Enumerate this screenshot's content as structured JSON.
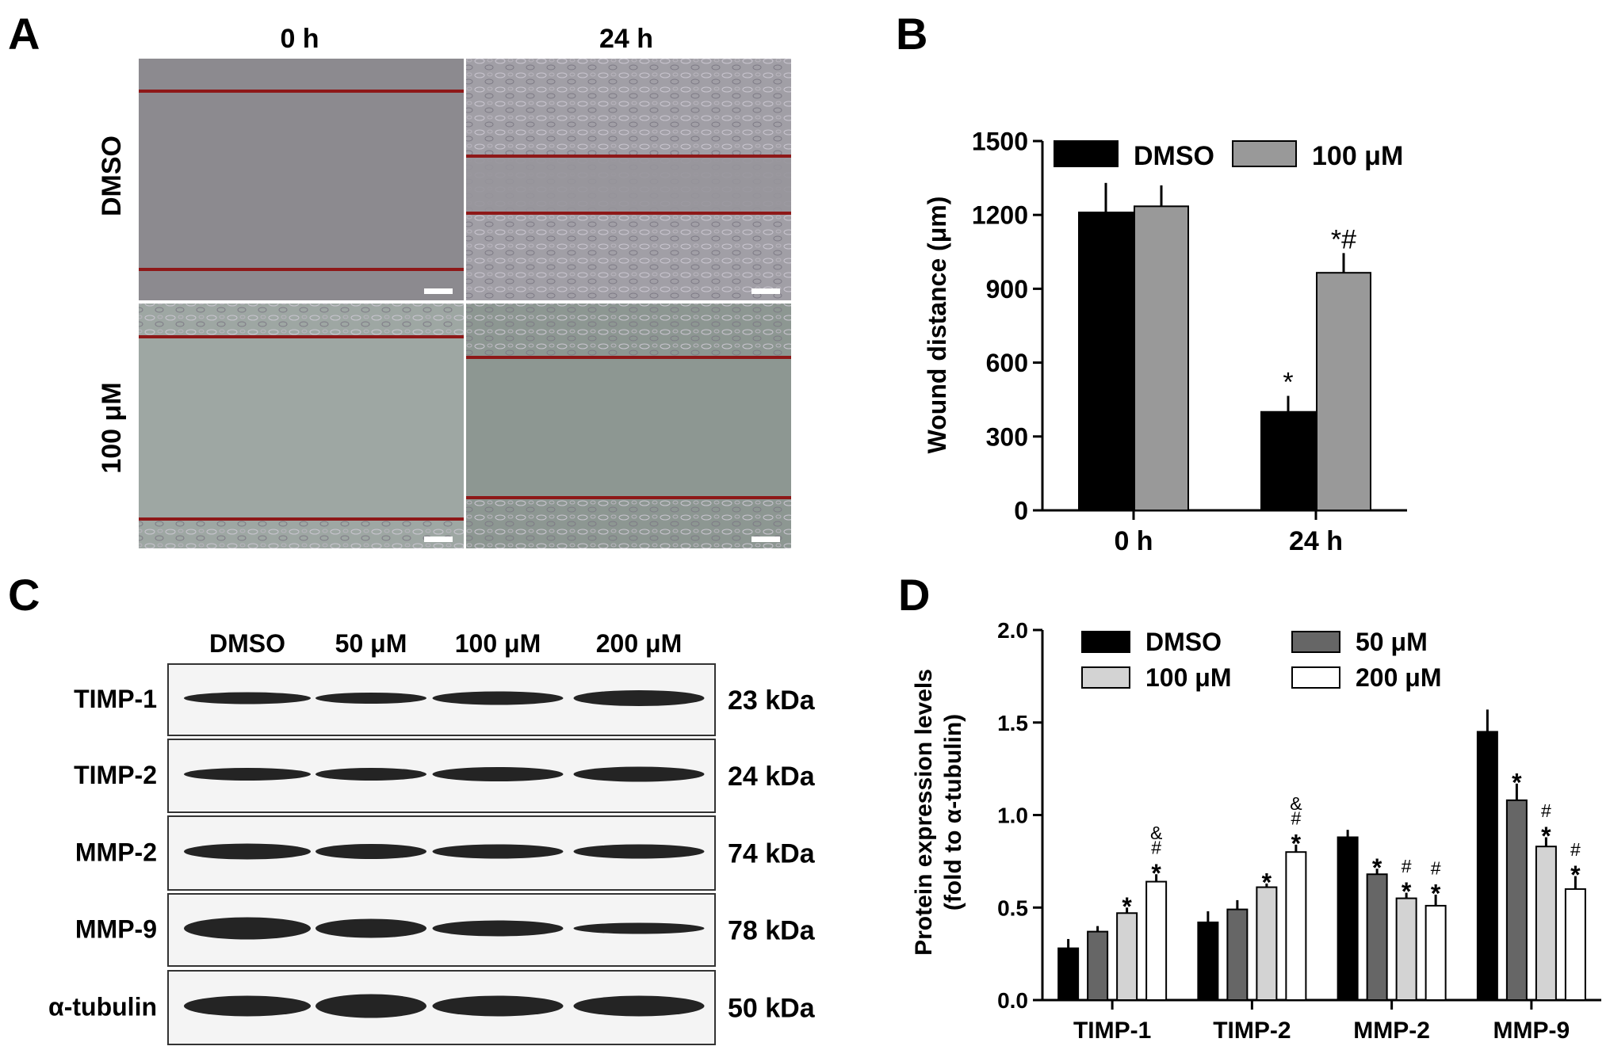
{
  "panels": {
    "A": {
      "letter": "A",
      "col_headers": [
        "0 h",
        "24 h"
      ],
      "row_labels": [
        "DMSO",
        "100 μM"
      ]
    },
    "C": {
      "letter": "C",
      "lane_labels": [
        "DMSO",
        "50 μM",
        "100 μM",
        "200 μM"
      ],
      "bands": [
        {
          "name": "TIMP-1",
          "size": "23 kDa"
        },
        {
          "name": "TIMP-2",
          "size": "24 kDa"
        },
        {
          "name": "MMP-2",
          "size": "74 kDa"
        },
        {
          "name": "MMP-9",
          "size": "78 kDa"
        },
        {
          "name": "α-tubulin",
          "size": "50 kDa"
        }
      ]
    }
  },
  "chart_data": [
    {
      "panel": "B",
      "type": "bar",
      "ylabel": "Wound distance (μm)",
      "categories": [
        "0 h",
        "24 h"
      ],
      "ylim": [
        0,
        1500
      ],
      "yticks": [
        0,
        300,
        600,
        900,
        1200,
        1500
      ],
      "legend_position": "top",
      "series": [
        {
          "name": "DMSO",
          "color": "#000000",
          "values": [
            1210,
            400
          ],
          "errors": [
            120,
            65
          ],
          "annotations": [
            "",
            "*"
          ]
        },
        {
          "name": "100 μM",
          "color": "#999999",
          "values": [
            1235,
            965
          ],
          "errors": [
            85,
            80
          ],
          "annotations": [
            "",
            "*#"
          ]
        }
      ]
    },
    {
      "panel": "D",
      "type": "bar",
      "ylabel_lines": [
        "Protein expression levels",
        "(fold to α-tubulin)"
      ],
      "categories": [
        "TIMP-1",
        "TIMP-2",
        "MMP-2",
        "MMP-9"
      ],
      "ylim": [
        0,
        2.0
      ],
      "yticks": [
        "0.0",
        "0.5",
        "1.0",
        "1.5",
        "2.0"
      ],
      "legend_position": "top",
      "series": [
        {
          "name": "DMSO",
          "color": "#000000",
          "values": [
            0.28,
            0.42,
            0.88,
            1.45
          ],
          "errors": [
            0.05,
            0.06,
            0.04,
            0.12
          ],
          "annotations": [
            "",
            "",
            "",
            ""
          ]
        },
        {
          "name": "50 μM",
          "color": "#666666",
          "values": [
            0.37,
            0.49,
            0.68,
            1.08
          ],
          "errors": [
            0.03,
            0.05,
            0.03,
            0.09
          ],
          "annotations": [
            "",
            "",
            "*",
            "*"
          ]
        },
        {
          "name": "100 μM",
          "color": "#d3d3d3",
          "values": [
            0.47,
            0.61,
            0.55,
            0.83
          ],
          "errors": [
            0.03,
            0.02,
            0.03,
            0.05
          ],
          "annotations": [
            "*",
            "*",
            "#*",
            "#*"
          ]
        },
        {
          "name": "200 μM",
          "color": "#ffffff",
          "values": [
            0.64,
            0.8,
            0.51,
            0.6
          ],
          "errors": [
            0.04,
            0.04,
            0.06,
            0.07
          ],
          "annotations": [
            "&#*",
            "&#*",
            "#*",
            "#*"
          ]
        }
      ]
    }
  ]
}
